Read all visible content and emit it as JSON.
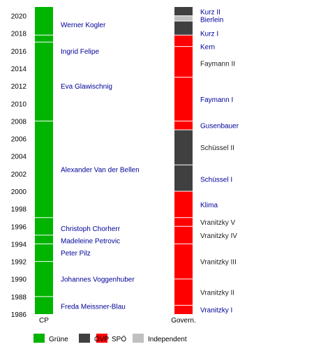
{
  "chart_data": {
    "type": "timeline",
    "title": "",
    "ylim": [
      1986,
      2021
    ],
    "yticks": [
      1986,
      1988,
      1990,
      1992,
      1994,
      1996,
      1998,
      2000,
      2002,
      2004,
      2006,
      2008,
      2010,
      2012,
      2014,
      2016,
      2018,
      2020
    ],
    "columns": [
      {
        "label": "CP",
        "key": "cp"
      },
      {
        "label": "Govern.",
        "key": "gov"
      }
    ],
    "party_colors": {
      "Grüne": "#00b400",
      "ÖVP": "#404040",
      "SPÖ": "#ff0000",
      "Independent": "#c0c0c0"
    },
    "legend": [
      {
        "name": "Grüne",
        "color": "#00b400"
      },
      {
        "name": "ÖVP",
        "color": "#404040"
      },
      {
        "name": "SPÖ",
        "color": "#ff0000"
      },
      {
        "name": "Independent",
        "color": "#c0c0c0"
      }
    ],
    "chairpersons": [
      {
        "name": "Freda Meissner-Blau",
        "start": 1986.0,
        "end": 1988.0,
        "party": "Grüne",
        "label_year": 1986.9
      },
      {
        "name": "Johannes Voggenhuber",
        "start": 1988.0,
        "end": 1992.0,
        "party": "Grüne",
        "label_year": 1990.0
      },
      {
        "name": "Peter Pilz",
        "start": 1992.0,
        "end": 1994.0,
        "party": "Grüne",
        "label_year": 1993.0
      },
      {
        "name": "Madeleine Petrovic",
        "start": 1994.0,
        "end": 1995.0,
        "party": "Grüne",
        "label_year": 1994.4
      },
      {
        "name": "Christoph Chorherr",
        "start": 1995.0,
        "end": 1997.0,
        "party": "Grüne",
        "label_year": 1995.8
      },
      {
        "name": "Alexander Van der Bellen",
        "start": 1997.0,
        "end": 2008.0,
        "party": "Grüne",
        "label_year": 2002.5
      },
      {
        "name": "Eva Glawischnig",
        "start": 2008.0,
        "end": 2017.0,
        "party": "Grüne",
        "label_year": 2012.0
      },
      {
        "name": "Ingrid Felipe",
        "start": 2017.0,
        "end": 2017.8,
        "party": "Grüne",
        "label_year": 2016.0
      },
      {
        "name": "Werner Kogler",
        "start": 2017.8,
        "end": 2021.0,
        "party": "Grüne",
        "label_year": 2019.0
      }
    ],
    "governments": [
      {
        "name": "Vranitzky I",
        "start": 1986.0,
        "end": 1987.0,
        "party": "SPÖ",
        "label_year": 1986.5,
        "link": true
      },
      {
        "name": "Vranitzky II",
        "start": 1987.0,
        "end": 1990.0,
        "party": "SPÖ",
        "label_year": 1988.5,
        "link": false
      },
      {
        "name": "Vranitzky III",
        "start": 1990.0,
        "end": 1994.0,
        "party": "SPÖ",
        "label_year": 1992.0,
        "link": false
      },
      {
        "name": "Vranitzky IV",
        "start": 1994.0,
        "end": 1996.0,
        "party": "SPÖ",
        "label_year": 1995.0,
        "link": false
      },
      {
        "name": "Vranitzky V",
        "start": 1996.0,
        "end": 1997.0,
        "party": "SPÖ",
        "label_year": 1996.5,
        "link": false
      },
      {
        "name": "Klima",
        "start": 1997.0,
        "end": 2000.0,
        "party": "SPÖ",
        "label_year": 1998.5,
        "link": true
      },
      {
        "name": "Schüssel I",
        "start": 2000.0,
        "end": 2003.0,
        "party": "ÖVP",
        "label_year": 2001.4,
        "link": true
      },
      {
        "name": "Schüssel II",
        "start": 2003.0,
        "end": 2007.0,
        "party": "ÖVP",
        "label_year": 2005.0,
        "link": false
      },
      {
        "name": "Gusenbauer",
        "start": 2007.0,
        "end": 2008.0,
        "party": "SPÖ",
        "label_year": 2007.5,
        "link": true
      },
      {
        "name": "Faymann I",
        "start": 2008.0,
        "end": 2013.0,
        "party": "SPÖ",
        "label_year": 2010.5,
        "link": true
      },
      {
        "name": "Faymann II",
        "start": 2013.0,
        "end": 2016.5,
        "party": "SPÖ",
        "label_year": 2014.6,
        "link": false
      },
      {
        "name": "Kern",
        "start": 2016.5,
        "end": 2017.8,
        "party": "SPÖ",
        "label_year": 2016.5,
        "link": true
      },
      {
        "name": "Kurz I",
        "start": 2017.8,
        "end": 2019.4,
        "party": "ÖVP",
        "label_year": 2018.0,
        "link": true
      },
      {
        "name": "Bierlein",
        "start": 2019.4,
        "end": 2020.0,
        "party": "Independent",
        "label_year": 2019.6,
        "link": true
      },
      {
        "name": "Kurz II",
        "start": 2020.0,
        "end": 2021.0,
        "party": "ÖVP",
        "label_year": 2020.5,
        "link": true
      }
    ]
  }
}
